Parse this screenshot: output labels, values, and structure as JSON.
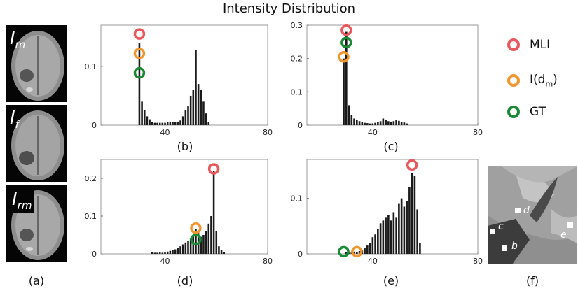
{
  "title": "Intensity Distribution",
  "brain_panels": [
    {
      "label": "I",
      "sub": "m"
    },
    {
      "label": "I",
      "sub": "f"
    },
    {
      "label": "I",
      "sub": "rm"
    }
  ],
  "legend": [
    {
      "label": "MLI",
      "color": "#e8585d"
    },
    {
      "label": "I(d",
      "sub": "m",
      "suffix": ")",
      "color": "#f0962e"
    },
    {
      "label": "GT",
      "color": "#1a8a36"
    }
  ],
  "captions": {
    "a": "(a)",
    "b": "(b)",
    "c": "(c)",
    "d": "(d)",
    "e": "(e)",
    "f": "(f)"
  },
  "panel_f_points": [
    "d",
    "c",
    "e",
    "b"
  ],
  "chart_data": [
    {
      "panel": "b",
      "type": "bar",
      "xlim": [
        15,
        80
      ],
      "ylim": [
        0,
        0.17
      ],
      "xticks": [
        "40",
        "80"
      ],
      "xtick_values": [
        40,
        80
      ],
      "yticks": [
        "0",
        "0.1"
      ],
      "ytick_values": [
        0,
        0.1
      ],
      "x": [
        30,
        31,
        32,
        33,
        34,
        35,
        36,
        37,
        38,
        39,
        40,
        41,
        42,
        43,
        44,
        45,
        46,
        47,
        48,
        49,
        50,
        51,
        52,
        53,
        54,
        55,
        56,
        57
      ],
      "values": [
        0.14,
        0.04,
        0.025,
        0.015,
        0.01,
        0.006,
        0.004,
        0.004,
        0.004,
        0.004,
        0.004,
        0.005,
        0.006,
        0.006,
        0.005,
        0.006,
        0.008,
        0.015,
        0.025,
        0.032,
        0.05,
        0.06,
        0.128,
        0.07,
        0.06,
        0.04,
        0.02,
        0.005
      ],
      "markers": [
        {
          "name": "MLI",
          "x": 30,
          "y": 0.155
        },
        {
          "name": "I(dm)",
          "x": 30,
          "y": 0.122
        },
        {
          "name": "GT",
          "x": 30,
          "y": 0.089
        }
      ]
    },
    {
      "panel": "c",
      "type": "bar",
      "xlim": [
        15,
        80
      ],
      "ylim": [
        0,
        0.3
      ],
      "xticks": [
        "40",
        "80"
      ],
      "xtick_values": [
        40,
        80
      ],
      "yticks": [
        "0",
        "0.1",
        "0.2",
        "0.3"
      ],
      "ytick_values": [
        0,
        0.1,
        0.2,
        0.3
      ],
      "x": [
        29,
        30,
        31,
        32,
        33,
        34,
        35,
        36,
        37,
        38,
        39,
        40,
        41,
        42,
        43,
        44,
        45,
        46,
        47,
        48,
        49,
        50,
        51,
        52,
        53
      ],
      "values": [
        0.2,
        0.28,
        0.06,
        0.03,
        0.02,
        0.015,
        0.012,
        0.01,
        0.007,
        0.006,
        0.005,
        0.005,
        0.007,
        0.01,
        0.012,
        0.02,
        0.015,
        0.012,
        0.01,
        0.012,
        0.015,
        0.013,
        0.01,
        0.008,
        0.005
      ],
      "markers": [
        {
          "name": "MLI",
          "x": 30,
          "y": 0.285
        },
        {
          "name": "GT",
          "x": 30,
          "y": 0.248
        },
        {
          "name": "I(dm)",
          "x": 29,
          "y": 0.205
        }
      ]
    },
    {
      "panel": "d",
      "type": "bar",
      "xlim": [
        15,
        80
      ],
      "ylim": [
        0,
        0.25
      ],
      "xticks": [
        "40",
        "80"
      ],
      "xtick_values": [
        40,
        80
      ],
      "yticks": [
        "0",
        "0.1",
        "0.2"
      ],
      "ytick_values": [
        0,
        0.1,
        0.2
      ],
      "x": [
        35,
        36,
        37,
        38,
        39,
        40,
        41,
        42,
        43,
        44,
        45,
        46,
        47,
        48,
        49,
        50,
        51,
        52,
        53,
        54,
        55,
        56,
        57,
        58,
        59,
        60,
        61,
        62,
        63
      ],
      "values": [
        0.004,
        0.003,
        0.003,
        0.004,
        0.003,
        0.005,
        0.006,
        0.008,
        0.01,
        0.012,
        0.015,
        0.02,
        0.025,
        0.03,
        0.035,
        0.04,
        0.05,
        0.065,
        0.055,
        0.045,
        0.05,
        0.06,
        0.08,
        0.1,
        0.22,
        0.06,
        0.02,
        0.01,
        0.005
      ],
      "markers": [
        {
          "name": "MLI",
          "x": 59,
          "y": 0.225
        },
        {
          "name": "I(dm)",
          "x": 52,
          "y": 0.068
        },
        {
          "name": "GT",
          "x": 52,
          "y": 0.038
        }
      ]
    },
    {
      "panel": "e",
      "type": "bar",
      "xlim": [
        15,
        80
      ],
      "ylim": [
        0,
        0.17
      ],
      "xticks": [
        "40",
        "80"
      ],
      "xtick_values": [
        40,
        80
      ],
      "yticks": [
        "0",
        "0.1"
      ],
      "ytick_values": [
        0,
        0.1
      ],
      "x": [
        30,
        31,
        32,
        33,
        34,
        35,
        36,
        37,
        38,
        39,
        40,
        41,
        42,
        43,
        44,
        45,
        46,
        47,
        48,
        49,
        50,
        51,
        52,
        53,
        54,
        55,
        56,
        57,
        58
      ],
      "values": [
        0.003,
        0.002,
        0.003,
        0.004,
        0.003,
        0.005,
        0.006,
        0.01,
        0.015,
        0.02,
        0.03,
        0.035,
        0.045,
        0.055,
        0.06,
        0.065,
        0.07,
        0.06,
        0.075,
        0.065,
        0.09,
        0.1,
        0.085,
        0.095,
        0.12,
        0.145,
        0.14,
        0.08,
        0.02
      ],
      "markers": [
        {
          "name": "MLI",
          "x": 55,
          "y": 0.16
        },
        {
          "name": "GT",
          "x": 29,
          "y": 0.004
        },
        {
          "name": "I(dm)",
          "x": 34,
          "y": 0.004
        }
      ]
    }
  ]
}
